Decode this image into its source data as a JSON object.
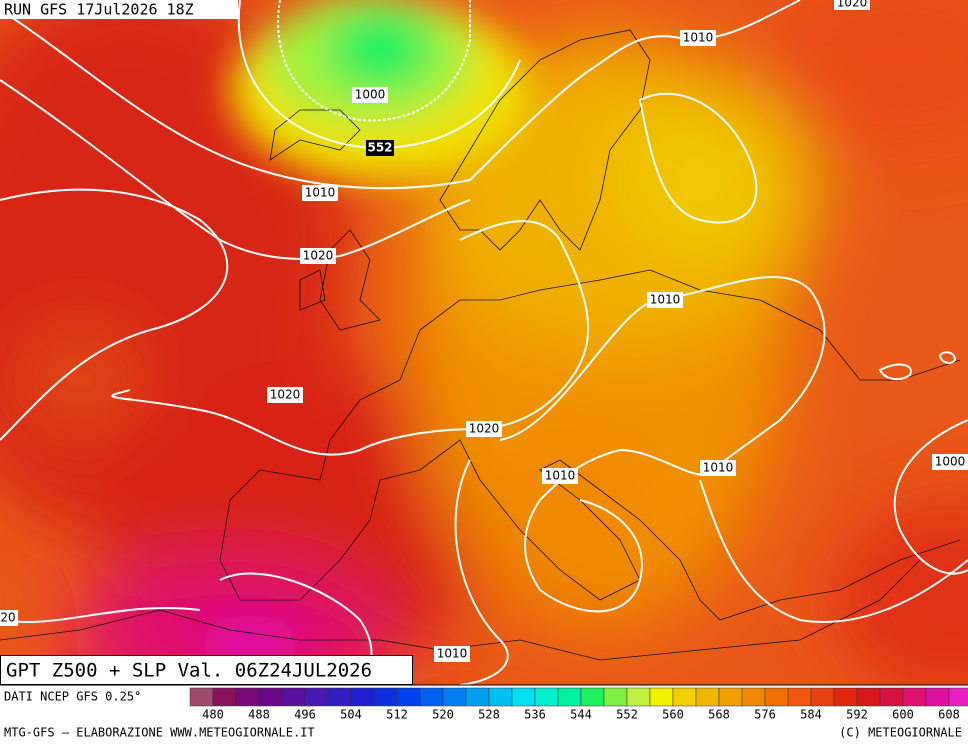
{
  "header": {
    "run": "RUN GFS 17Jul2026 18Z"
  },
  "map": {
    "isobar_labels": [
      1000,
      552,
      1010,
      1010,
      1020,
      1010,
      1020,
      1020,
      1010,
      1010,
      1000,
      20,
      1010,
      1020
    ]
  },
  "title": "GPT Z500 + SLP Val. 06Z24JUL2026",
  "colorbar": {
    "source": "DATI NCEP GFS 0.25°",
    "colors": [
      "#a04a70",
      "#8a1060",
      "#7a0a78",
      "#6a0a8a",
      "#5a10a0",
      "#4818b0",
      "#3020c0",
      "#2020d0",
      "#1030e0",
      "#0040f0",
      "#0060f0",
      "#0080f0",
      "#00a0f0",
      "#00c0f0",
      "#00e0f0",
      "#00f0d0",
      "#00f0a0",
      "#20f060",
      "#80f040",
      "#c0f040",
      "#f0f000",
      "#f0d000",
      "#f0b800",
      "#f0a000",
      "#f08800",
      "#f07000",
      "#f05810",
      "#e84010",
      "#e02810",
      "#d81818",
      "#d81040",
      "#e01070",
      "#e010a0",
      "#e820c0"
    ],
    "labels": [
      480,
      488,
      496,
      504,
      512,
      520,
      528,
      536,
      544,
      552,
      560,
      568,
      576,
      584,
      592,
      600,
      608
    ]
  },
  "footer": {
    "left": "MTG-GFS – ELABORAZIONE WWW.METEOGIORNALE.IT",
    "right": "(C) METEOGIORNALE"
  }
}
